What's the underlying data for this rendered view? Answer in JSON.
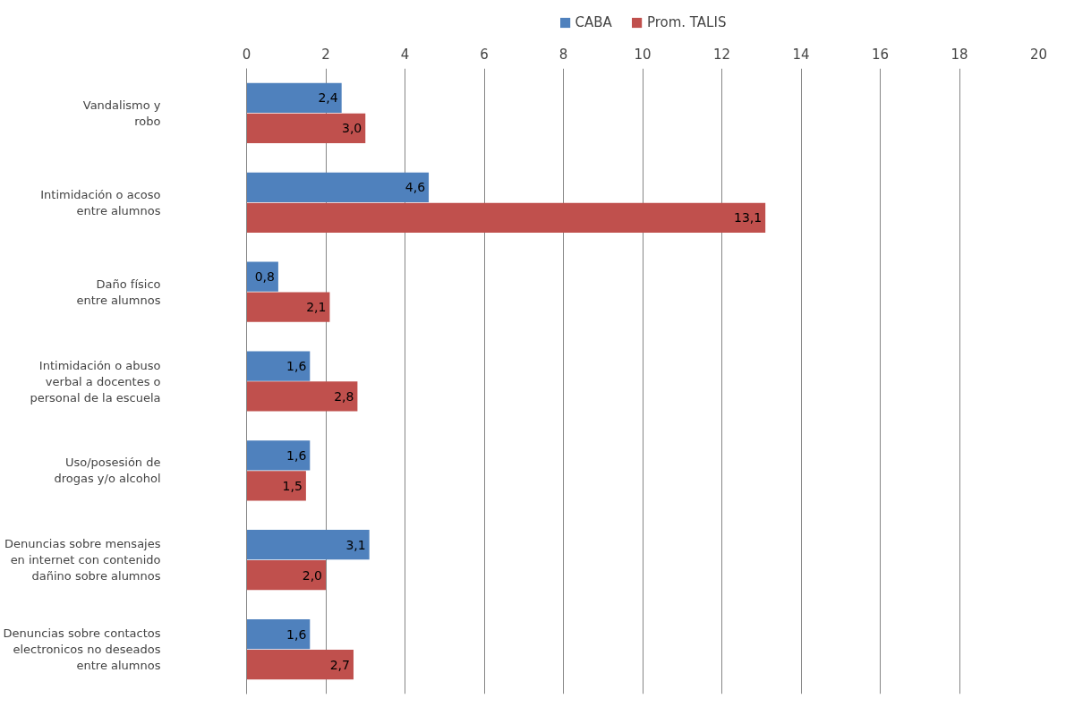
{
  "chart_data": {
    "type": "bar",
    "orientation": "horizontal",
    "categories": [
      "Vandalismo y\nrobo",
      "Intimidación o acoso\nentre alumnos",
      "Daño físico\nentre alumnos",
      "Intimidación o abuso\nverbal a docentes o\npersonal de la escuela",
      "Uso/posesión de\ndrogas y/o alcohol",
      "Denuncias sobre mensajes\nen internet con contenido\ndañino sobre alumnos",
      "Denuncias sobre contactos\nelectronicos no deseados\nentre alumnos"
    ],
    "series": [
      {
        "name": "CABA",
        "color": "#4f81bd",
        "values": [
          2.4,
          4.6,
          0.8,
          1.6,
          1.6,
          3.1,
          1.6
        ],
        "value_labels": [
          "2,4",
          "4,6",
          "0,8",
          "1,6",
          "1,6",
          "3,1",
          "1,6"
        ]
      },
      {
        "name": "Prom. TALIS",
        "color": "#c0504d",
        "values": [
          3.0,
          13.1,
          2.1,
          2.8,
          1.5,
          2.0,
          2.7
        ],
        "value_labels": [
          "3,0",
          "13,1",
          "2,1",
          "2,8",
          "1,5",
          "2,0",
          "2,7"
        ]
      }
    ],
    "xlim": [
      0,
      20
    ],
    "xticks": [
      0,
      2,
      4,
      6,
      8,
      10,
      12,
      14,
      16,
      18,
      20
    ],
    "grid": "x",
    "legend": "top"
  }
}
